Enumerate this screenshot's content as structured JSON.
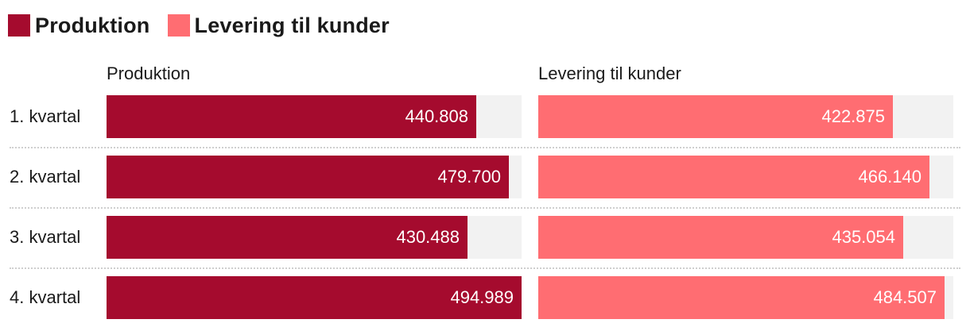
{
  "chart_data": {
    "type": "bar",
    "orientation": "horizontal",
    "legend": [
      {
        "name": "Produktion",
        "color": "#a50b2e"
      },
      {
        "name": "Levering til kunder",
        "color": "#ff6d72"
      }
    ],
    "categories": [
      "1. kvartal",
      "2. kvartal",
      "3. kvartal",
      "4. kvartal"
    ],
    "series": [
      {
        "name": "Produktion",
        "header": "Produktion",
        "color": "#a50b2e",
        "values": [
          440808,
          479700,
          430488,
          494989
        ],
        "labels": [
          "440.808",
          "479.700",
          "430.488",
          "494.989"
        ]
      },
      {
        "name": "Levering til kunder",
        "header": "Levering til kunder",
        "color": "#ff6d72",
        "values": [
          422875,
          466140,
          435054,
          484507
        ],
        "labels": [
          "422.875",
          "466.140",
          "435.054",
          "484.507"
        ]
      }
    ],
    "xlim": [
      0,
      494989
    ]
  }
}
